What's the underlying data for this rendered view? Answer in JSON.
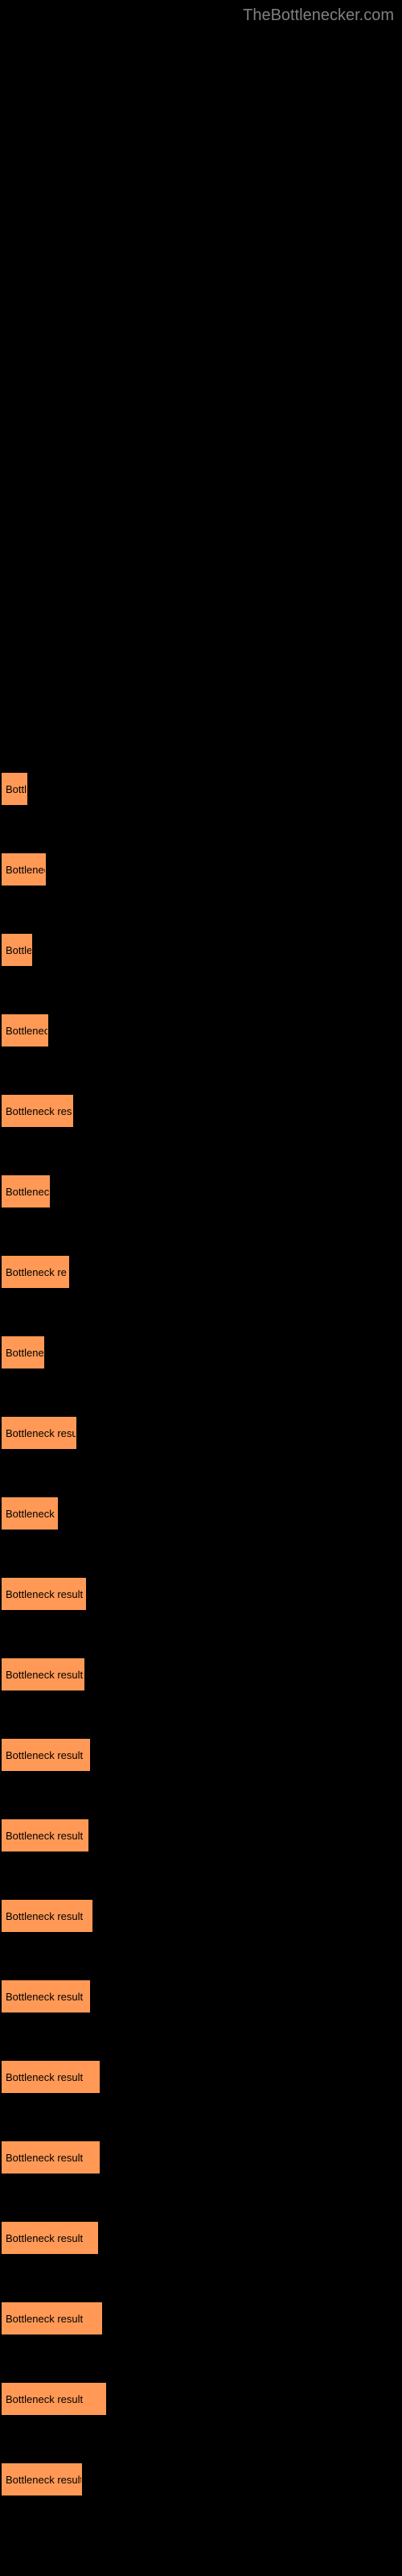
{
  "watermark": "TheBottlenecker.com",
  "chart": {
    "type": "bar",
    "bar_color": "#ff9955",
    "background_color": "#000000",
    "text_color": "#000000",
    "watermark_color": "#808080",
    "bar_label": "Bottleneck result",
    "bars": [
      {
        "width": 32,
        "label": "Bottl"
      },
      {
        "width": 55,
        "label": "Bottlenec"
      },
      {
        "width": 38,
        "label": "Bottle"
      },
      {
        "width": 58,
        "label": "Bottleneck"
      },
      {
        "width": 89,
        "label": "Bottleneck res"
      },
      {
        "width": 60,
        "label": "Bottleneck"
      },
      {
        "width": 84,
        "label": "Bottleneck re"
      },
      {
        "width": 53,
        "label": "Bottlenec"
      },
      {
        "width": 93,
        "label": "Bottleneck resu"
      },
      {
        "width": 70,
        "label": "Bottleneck r"
      },
      {
        "width": 105,
        "label": "Bottleneck result"
      },
      {
        "width": 103,
        "label": "Bottleneck result"
      },
      {
        "width": 110,
        "label": "Bottleneck result"
      },
      {
        "width": 108,
        "label": "Bottleneck result"
      },
      {
        "width": 113,
        "label": "Bottleneck result"
      },
      {
        "width": 110,
        "label": "Bottleneck result"
      },
      {
        "width": 122,
        "label": "Bottleneck result"
      },
      {
        "width": 122,
        "label": "Bottleneck result"
      },
      {
        "width": 120,
        "label": "Bottleneck result"
      },
      {
        "width": 125,
        "label": "Bottleneck result"
      },
      {
        "width": 130,
        "label": "Bottleneck result"
      },
      {
        "width": 100,
        "label": "Bottleneck result"
      }
    ]
  }
}
